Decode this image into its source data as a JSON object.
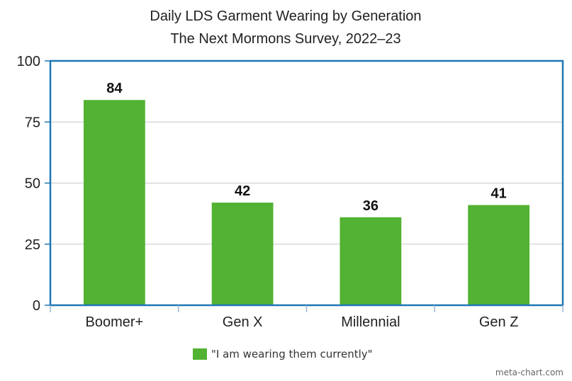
{
  "chart_data": {
    "type": "bar",
    "title": "Daily LDS Garment Wearing by Generation",
    "subtitle": "The Next Mormons Survey, 2022–23",
    "categories": [
      "Boomer+",
      "Gen X",
      "Millennial",
      "Gen Z"
    ],
    "series": [
      {
        "name": "\"I am wearing them currently\"",
        "values": [
          84,
          42,
          36,
          41
        ],
        "color": "#52b232"
      }
    ],
    "ylim": [
      0,
      100
    ],
    "yticks": [
      0,
      25,
      50,
      75,
      100
    ],
    "grid": true,
    "legend_position": "bottom-center",
    "frame_color": "#1f77b4",
    "data_labels": true
  },
  "credit": "meta-chart.com"
}
